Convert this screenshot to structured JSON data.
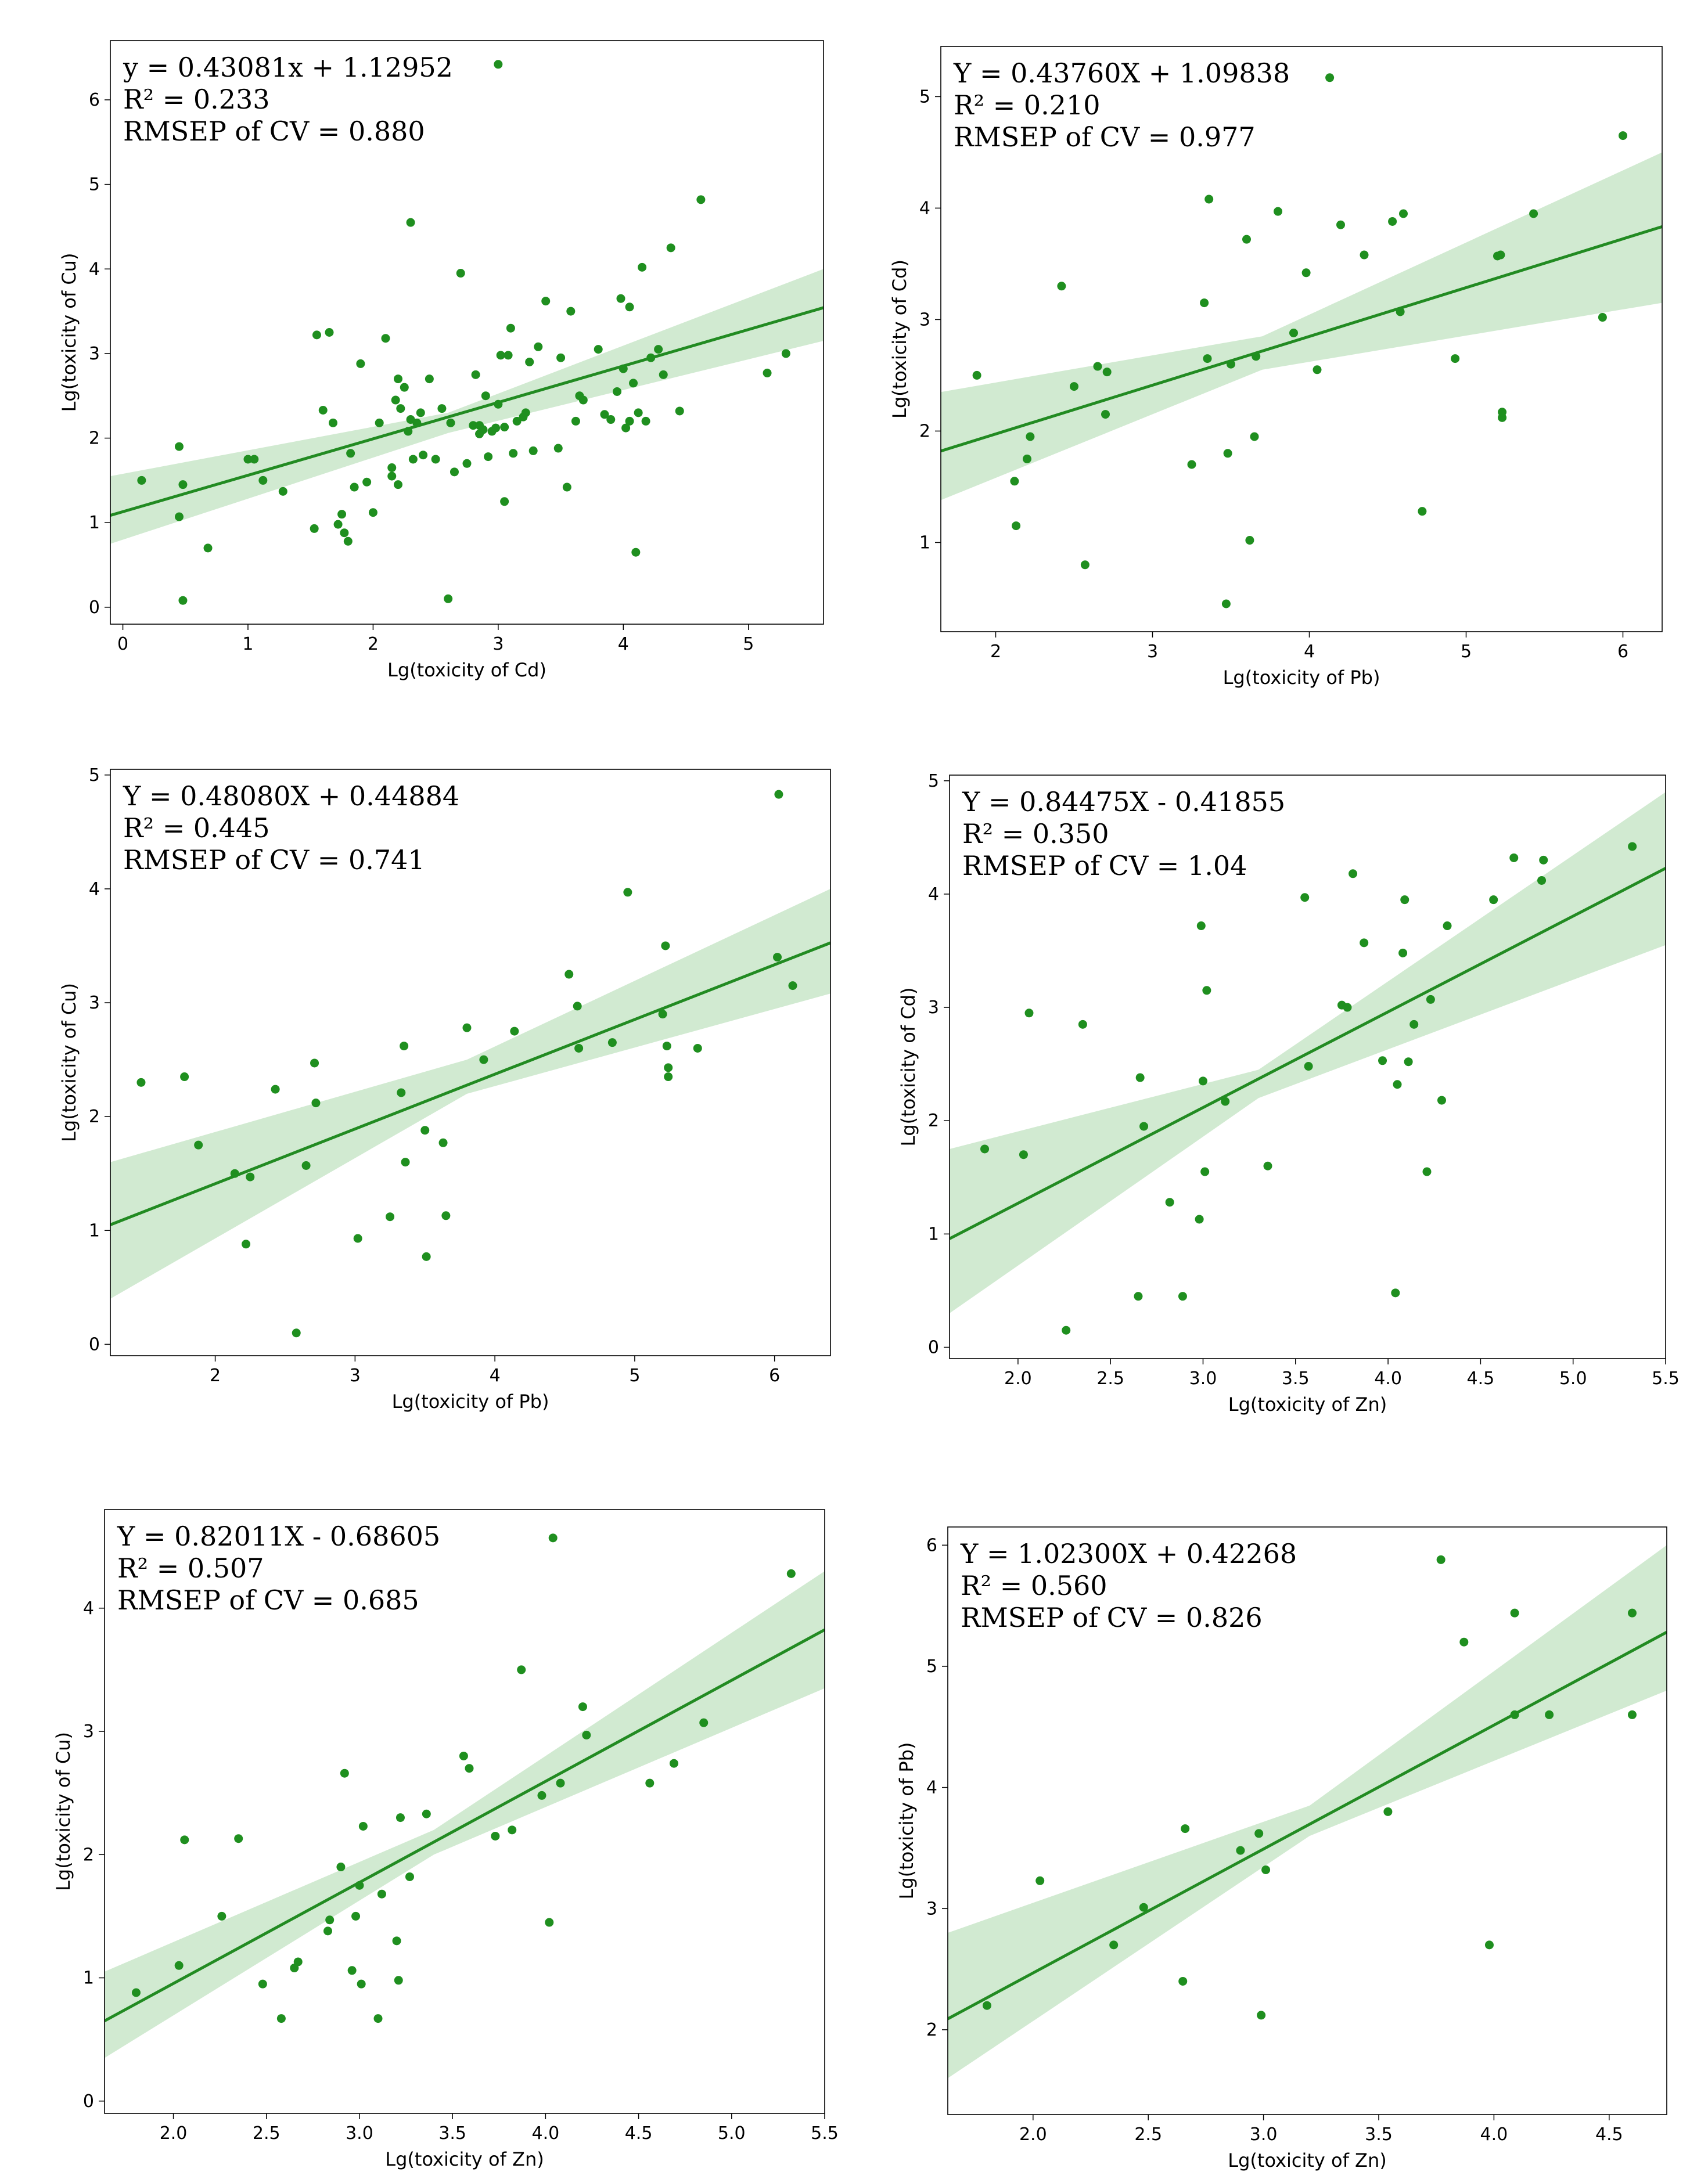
{
  "chart_data": [
    {
      "type": "scatter",
      "title": "",
      "xlabel": "Lg(toxicity of Cd)",
      "ylabel": "Lg(toxicity of Cu)",
      "xlim": [
        -0.1,
        5.6
      ],
      "ylim": [
        -0.2,
        6.7
      ],
      "xticks": [
        0,
        1,
        2,
        3,
        4,
        5
      ],
      "yticks": [
        0,
        1,
        2,
        3,
        4,
        5,
        6
      ],
      "equation": "y = 0.43081x + 1.12952",
      "r2": "R² = 0.233",
      "rmsep": "RMSEP of CV = 0.880",
      "fit": {
        "slope": 0.43081,
        "intercept": 1.12952
      },
      "band": {
        "lower": [
          [
            -0.1,
            0.75
          ],
          [
            2.6,
            2.06
          ],
          [
            5.6,
            3.15
          ]
        ],
        "upper": [
          [
            -0.1,
            1.55
          ],
          [
            2.6,
            2.3
          ],
          [
            5.6,
            4.0
          ]
        ]
      },
      "x": [
        0.15,
        0.45,
        0.45,
        0.48,
        0.48,
        0.68,
        1.0,
        1.05,
        1.12,
        1.28,
        1.53,
        1.55,
        1.6,
        1.65,
        1.68,
        1.72,
        1.75,
        1.77,
        1.8,
        1.82,
        1.85,
        1.9,
        1.95,
        2.0,
        2.05,
        2.1,
        2.15,
        2.15,
        2.18,
        2.2,
        2.2,
        2.22,
        2.25,
        2.28,
        2.3,
        2.32,
        2.35,
        2.38,
        2.4,
        2.45,
        2.5,
        2.55,
        2.6,
        2.65,
        2.7,
        2.75,
        2.8,
        2.82,
        2.85,
        2.85,
        2.88,
        2.9,
        2.92,
        2.95,
        2.98,
        3.0,
        3.02,
        3.05,
        3.05,
        3.08,
        3.1,
        3.12,
        3.15,
        3.2,
        3.22,
        3.25,
        3.28,
        3.32,
        3.38,
        3.48,
        3.5,
        3.55,
        3.58,
        3.62,
        3.65,
        3.68,
        3.8,
        3.85,
        3.9,
        3.95,
        3.98,
        4.0,
        4.02,
        4.05,
        4.08,
        4.1,
        4.12,
        4.15,
        4.18,
        4.22,
        4.28,
        4.32,
        4.38,
        4.45,
        4.62,
        5.15,
        5.3,
        3.0,
        2.3,
        2.62,
        4.05
      ],
      "y": [
        1.5,
        1.9,
        1.07,
        0.08,
        1.45,
        0.7,
        1.75,
        1.75,
        1.5,
        1.37,
        0.93,
        3.22,
        2.33,
        3.25,
        2.18,
        0.98,
        1.1,
        0.88,
        0.78,
        1.82,
        1.42,
        2.88,
        1.48,
        1.12,
        2.18,
        3.18,
        1.65,
        1.55,
        2.45,
        2.7,
        1.45,
        2.35,
        2.6,
        2.08,
        2.22,
        1.75,
        2.18,
        2.3,
        1.8,
        2.7,
        1.75,
        2.35,
        0.1,
        1.6,
        3.95,
        1.7,
        2.15,
        2.75,
        2.15,
        2.05,
        2.1,
        2.5,
        1.78,
        2.08,
        2.12,
        2.4,
        2.98,
        1.25,
        2.13,
        2.98,
        3.3,
        1.82,
        2.2,
        2.25,
        2.3,
        2.9,
        1.85,
        3.08,
        3.62,
        1.88,
        2.95,
        1.42,
        3.5,
        2.2,
        2.5,
        2.45,
        3.05,
        2.28,
        2.22,
        2.55,
        3.65,
        2.82,
        2.12,
        3.55,
        2.65,
        0.65,
        2.3,
        4.02,
        2.2,
        2.95,
        3.05,
        2.75,
        4.25,
        2.32,
        4.82,
        2.77,
        3.0,
        6.42,
        4.55,
        2.18,
        2.2
      ]
    },
    {
      "type": "scatter",
      "title": "",
      "xlabel": "Lg(toxicity of Pb)",
      "ylabel": "Lg(toxicity of Cd)",
      "xlim": [
        1.65,
        6.25
      ],
      "ylim": [
        0.2,
        5.45
      ],
      "xticks": [
        2,
        3,
        4,
        5,
        6
      ],
      "yticks": [
        1,
        2,
        3,
        4,
        5
      ],
      "equation": "Y = 0.43760X + 1.09838",
      "r2": "R² = 0.210",
      "rmsep": "RMSEP of CV = 0.977",
      "fit": {
        "slope": 0.4376,
        "intercept": 1.09838
      },
      "band": {
        "lower": [
          [
            1.65,
            1.38
          ],
          [
            3.7,
            2.55
          ],
          [
            6.25,
            3.15
          ]
        ],
        "upper": [
          [
            1.65,
            2.35
          ],
          [
            3.7,
            2.85
          ],
          [
            6.25,
            4.5
          ]
        ]
      },
      "x": [
        1.88,
        2.12,
        2.13,
        2.2,
        2.22,
        2.42,
        2.5,
        2.57,
        2.65,
        2.7,
        2.71,
        3.25,
        3.33,
        3.35,
        3.36,
        3.47,
        3.48,
        3.5,
        3.6,
        3.62,
        3.65,
        3.66,
        3.8,
        3.9,
        3.98,
        4.05,
        4.13,
        4.2,
        4.35,
        4.53,
        4.58,
        4.6,
        4.72,
        4.93,
        5.2,
        5.22,
        5.23,
        5.23,
        5.43,
        5.87,
        6.0
      ],
      "y": [
        2.5,
        1.55,
        1.15,
        1.75,
        1.95,
        3.3,
        2.4,
        0.8,
        2.58,
        2.15,
        2.53,
        1.7,
        3.15,
        2.65,
        4.08,
        0.45,
        1.8,
        2.6,
        3.72,
        1.02,
        1.95,
        2.67,
        3.97,
        2.88,
        3.42,
        2.55,
        5.17,
        3.85,
        3.58,
        3.88,
        3.07,
        3.95,
        1.28,
        2.65,
        3.57,
        3.58,
        2.12,
        2.17,
        3.95,
        3.02,
        4.65
      ]
    },
    {
      "type": "scatter",
      "title": "",
      "xlabel": "Lg(toxicity of Pb)",
      "ylabel": "Lg(toxicity of Cu)",
      "xlim": [
        1.25,
        6.4
      ],
      "ylim": [
        -0.1,
        5.05
      ],
      "xticks": [
        2,
        3,
        4,
        5,
        6
      ],
      "yticks": [
        0,
        1,
        2,
        3,
        4,
        5
      ],
      "equation": "Y = 0.48080X + 0.44884",
      "r2": "R² = 0.445",
      "rmsep": "RMSEP of CV = 0.741",
      "fit": {
        "slope": 0.4808,
        "intercept": 0.44884
      },
      "band": {
        "lower": [
          [
            1.25,
            0.4
          ],
          [
            3.8,
            2.2
          ],
          [
            6.4,
            3.08
          ]
        ],
        "upper": [
          [
            1.25,
            1.6
          ],
          [
            3.8,
            2.5
          ],
          [
            6.4,
            4.0
          ]
        ]
      },
      "x": [
        1.47,
        1.78,
        1.88,
        2.14,
        2.22,
        2.25,
        2.43,
        2.58,
        2.65,
        2.71,
        2.72,
        3.02,
        3.25,
        3.33,
        3.35,
        3.36,
        3.5,
        3.51,
        3.63,
        3.65,
        3.8,
        3.92,
        4.14,
        4.53,
        4.59,
        4.6,
        4.84,
        4.95,
        5.2,
        5.22,
        5.23,
        5.24,
        5.24,
        5.45,
        6.02,
        6.03,
        6.13
      ],
      "y": [
        2.3,
        2.35,
        1.75,
        1.5,
        0.88,
        1.47,
        2.24,
        0.1,
        1.57,
        2.47,
        2.12,
        0.93,
        1.12,
        2.21,
        2.62,
        1.6,
        1.88,
        0.77,
        1.77,
        1.13,
        2.78,
        2.5,
        2.75,
        3.25,
        2.97,
        2.6,
        2.65,
        3.97,
        2.9,
        3.5,
        2.62,
        2.43,
        2.35,
        2.6,
        3.4,
        4.83,
        3.15
      ]
    },
    {
      "type": "scatter",
      "title": "",
      "xlabel": "Lg(toxicity of Zn)",
      "ylabel": "Lg(toxicity of Cd)",
      "xlim": [
        1.63,
        5.5
      ],
      "ylim": [
        -0.1,
        5.05
      ],
      "xticks": [
        2.0,
        2.5,
        3.0,
        3.5,
        4.0,
        4.5,
        5.0,
        5.5
      ],
      "yticks": [
        0,
        1,
        2,
        3,
        4,
        5
      ],
      "equation": "Y = 0.84475X - 0.41855",
      "r2": "R² = 0.350",
      "rmsep": "RMSEP of CV = 1.04",
      "fit": {
        "slope": 0.84475,
        "intercept": -0.41855
      },
      "band": {
        "lower": [
          [
            1.63,
            0.3
          ],
          [
            3.3,
            2.2
          ],
          [
            5.5,
            3.55
          ]
        ],
        "upper": [
          [
            1.63,
            1.75
          ],
          [
            3.3,
            2.45
          ],
          [
            5.5,
            4.9
          ]
        ]
      },
      "x": [
        1.82,
        2.03,
        2.06,
        2.26,
        2.35,
        2.65,
        2.66,
        2.68,
        2.82,
        2.89,
        2.98,
        2.99,
        3.0,
        3.01,
        3.02,
        3.12,
        3.35,
        3.55,
        3.57,
        3.75,
        3.78,
        3.81,
        3.87,
        3.97,
        4.04,
        4.05,
        4.08,
        4.09,
        4.11,
        4.14,
        4.21,
        4.23,
        4.29,
        4.32,
        4.57,
        4.68,
        4.83,
        4.84,
        5.32
      ],
      "y": [
        1.75,
        1.7,
        2.95,
        0.15,
        2.85,
        0.45,
        2.38,
        1.95,
        1.28,
        0.45,
        1.13,
        3.72,
        2.35,
        1.55,
        3.15,
        2.17,
        1.6,
        3.97,
        2.48,
        3.02,
        3.0,
        4.18,
        3.57,
        2.53,
        0.48,
        2.32,
        3.48,
        3.95,
        2.52,
        2.85,
        1.55,
        3.07,
        2.18,
        3.72,
        3.95,
        4.32,
        4.12,
        4.3,
        4.42
      ]
    },
    {
      "type": "scatter",
      "title": "",
      "xlabel": "Lg(toxicity of Zn)",
      "ylabel": "Lg(toxicity of Cu)",
      "xlim": [
        1.63,
        5.5
      ],
      "ylim": [
        -0.1,
        4.8
      ],
      "xticks": [
        2.0,
        2.5,
        3.0,
        3.5,
        4.0,
        4.5,
        5.0,
        5.5
      ],
      "yticks": [
        0,
        1,
        2,
        3,
        4
      ],
      "equation": "Y = 0.82011X - 0.68605",
      "r2": "R² = 0.507",
      "rmsep": "RMSEP of CV = 0.685",
      "fit": {
        "slope": 0.82011,
        "intercept": -0.68605
      },
      "band": {
        "lower": [
          [
            1.63,
            0.35
          ],
          [
            3.4,
            2.0
          ],
          [
            5.5,
            3.35
          ]
        ],
        "upper": [
          [
            1.63,
            1.05
          ],
          [
            3.4,
            2.2
          ],
          [
            5.5,
            4.3
          ]
        ]
      },
      "x": [
        1.8,
        2.03,
        2.06,
        2.26,
        2.35,
        2.48,
        2.58,
        2.65,
        2.67,
        2.83,
        2.84,
        2.9,
        2.92,
        2.96,
        2.98,
        3.0,
        3.01,
        3.02,
        3.1,
        3.12,
        3.2,
        3.21,
        3.22,
        3.27,
        3.36,
        3.56,
        3.59,
        3.73,
        3.82,
        3.87,
        3.98,
        4.02,
        4.04,
        4.08,
        4.2,
        4.22,
        4.56,
        4.69,
        4.85,
        5.32
      ],
      "y": [
        0.88,
        1.1,
        2.12,
        1.5,
        2.13,
        0.95,
        0.67,
        1.08,
        1.13,
        1.38,
        1.47,
        1.9,
        2.66,
        1.06,
        1.5,
        1.75,
        0.95,
        2.23,
        0.67,
        1.68,
        1.3,
        0.98,
        2.3,
        1.82,
        2.33,
        2.8,
        2.7,
        2.15,
        2.2,
        3.5,
        2.48,
        1.45,
        4.57,
        2.58,
        3.2,
        2.97,
        2.58,
        2.74,
        3.07,
        4.28
      ]
    },
    {
      "type": "scatter",
      "title": "",
      "xlabel": "Lg(toxicity of Zn)",
      "ylabel": "Lg(toxicity of Pb)",
      "xlim": [
        1.63,
        4.75
      ],
      "ylim": [
        1.3,
        6.15
      ],
      "xticks": [
        2.0,
        2.5,
        3.0,
        3.5,
        4.0,
        4.5
      ],
      "yticks": [
        2,
        3,
        4,
        5,
        6
      ],
      "equation": "Y = 1.02300X + 0.42268",
      "r2": "R² = 0.560",
      "rmsep": "RMSEP of CV = 0.826",
      "fit": {
        "slope": 1.023,
        "intercept": 0.42268
      },
      "band": {
        "lower": [
          [
            1.63,
            1.6
          ],
          [
            3.2,
            3.6
          ],
          [
            4.75,
            4.8
          ]
        ],
        "upper": [
          [
            1.63,
            2.8
          ],
          [
            3.2,
            3.85
          ],
          [
            4.75,
            6.0
          ]
        ]
      },
      "x": [
        1.8,
        2.03,
        2.35,
        2.48,
        2.65,
        2.66,
        2.9,
        2.98,
        2.99,
        3.01,
        3.54,
        3.77,
        3.87,
        3.98,
        4.09,
        4.09,
        4.24,
        4.6,
        4.6
      ],
      "y": [
        2.2,
        3.23,
        2.7,
        3.01,
        2.4,
        3.66,
        3.48,
        3.62,
        2.12,
        3.32,
        3.8,
        5.88,
        5.2,
        2.7,
        4.6,
        5.44,
        4.6,
        5.44,
        4.6
      ]
    }
  ],
  "colors": {
    "points": "#1f8f1f",
    "line": "#228b22",
    "band": "#c9e6c9"
  }
}
